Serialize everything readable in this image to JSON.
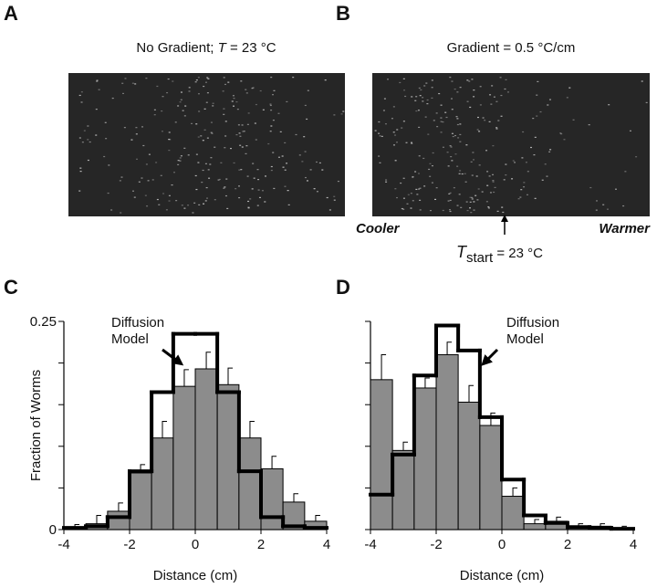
{
  "panels": [
    {
      "letter": "A",
      "title": {
        "pre": "No Gradient; ",
        "italic": "T",
        "post": " = 23 °C"
      }
    },
    {
      "letter": "B",
      "title": {
        "pre": "Gradient = 0.5 °C/cm"
      },
      "left_label": "Cooler",
      "right_label": "Warmer",
      "start": {
        "italic": "T",
        "sub": "start",
        "post": " = 23 °C"
      }
    }
  ],
  "chart_data": [
    {
      "type": "histogram",
      "letter": "C",
      "ylabel": "Fraction of Worms",
      "xlabel": "Distance (cm)",
      "bins": [
        -4,
        -3.33,
        -2.67,
        -2,
        -1.33,
        -0.67,
        0,
        0.67,
        1.33,
        2,
        2.67,
        3.33,
        4
      ],
      "values": [
        0.003,
        0.007,
        0.022,
        0.068,
        0.11,
        0.172,
        0.193,
        0.174,
        0.11,
        0.073,
        0.033,
        0.01
      ],
      "errors": [
        0.003,
        0.01,
        0.01,
        0.01,
        0.02,
        0.02,
        0.02,
        0.02,
        0.02,
        0.015,
        0.01,
        0.007
      ],
      "color": "#8c8c8c",
      "model": [
        0.002,
        0.004,
        0.015,
        0.07,
        0.165,
        0.235,
        0.235,
        0.165,
        0.07,
        0.015,
        0.004,
        0.002
      ],
      "annotation": [
        "Diffusion",
        "Model"
      ],
      "xlim": [
        -4,
        4
      ],
      "xticks": [
        -4,
        -2,
        0,
        2,
        4
      ],
      "ylim": [
        0,
        0.25
      ],
      "yticks": [
        0,
        0.25
      ],
      "minor_yticks": [
        0.05,
        0.1,
        0.15,
        0.2
      ]
    },
    {
      "type": "histogram",
      "letter": "D",
      "xlabel": "Distance (cm)",
      "bins": [
        -4,
        -3.33,
        -2.67,
        -2,
        -1.33,
        -0.67,
        0,
        0.67,
        1.33,
        2,
        2.67,
        3.33,
        4
      ],
      "values": [
        0.18,
        0.095,
        0.17,
        0.21,
        0.153,
        0.125,
        0.04,
        0.007,
        0.01,
        0.004,
        0.004,
        0.002
      ],
      "errors": [
        0.03,
        0.01,
        0.012,
        0.015,
        0.02,
        0.015,
        0.01,
        0.005,
        0.005,
        0.003,
        0.003,
        0.002
      ],
      "color": "#8c8c8c",
      "model": [
        0.042,
        0.09,
        0.185,
        0.245,
        0.215,
        0.135,
        0.06,
        0.017,
        0.008,
        0.003,
        0.002,
        0.001
      ],
      "annotation": [
        "Diffusion",
        "Model"
      ],
      "xlim": [
        -4,
        4
      ],
      "xticks": [
        -4,
        -2,
        0,
        2,
        4
      ],
      "ylim": [
        0,
        0.25
      ],
      "minor_yticks": [
        0,
        0.05,
        0.1,
        0.15,
        0.2,
        0.25
      ]
    }
  ]
}
